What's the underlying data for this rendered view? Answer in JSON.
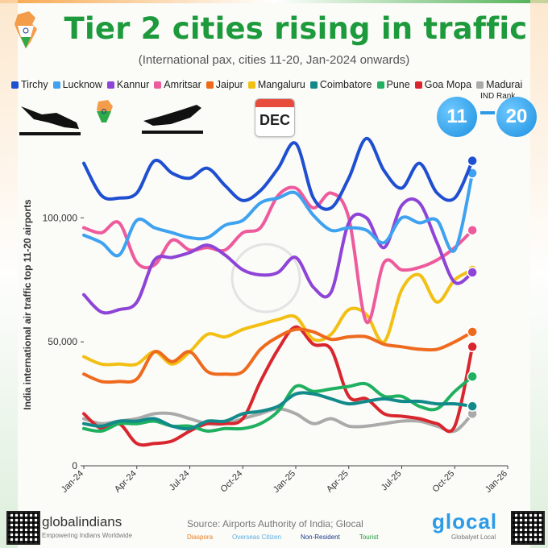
{
  "header": {
    "title": "Tier 2 cities rising in traffic",
    "subtitle": "(International pax, cities 11-20, Jan-2024 onwards)"
  },
  "badges": {
    "rank_label": "IND Rank",
    "rank_start": "11",
    "rank_end": "20",
    "calendar_text": "DEC"
  },
  "footer": {
    "source": "Source: Airports Authority of India; Glocal",
    "tags": [
      {
        "label": "Diaspora",
        "color": "#e67e22"
      },
      {
        "label": "Overseas Citizen",
        "color": "#5dade2"
      },
      {
        "label": "Non-Resident",
        "color": "#1a3a8a"
      },
      {
        "label": "Tourist",
        "color": "#1d9a3c"
      }
    ],
    "brand_left": "globalindians",
    "brand_left_sub": "Empowering Indians Worldwide",
    "brand_right": "glocal",
    "brand_right_sub": "Globalyet Local"
  },
  "chart_data": {
    "type": "line",
    "title": "Tier 2 cities rising in traffic",
    "subtitle": "(International pax, cities 11-20, Jan-2024 onwards)",
    "xlabel": "",
    "ylabel": "India international air traffic top 11-20 airports",
    "ylim": [
      0,
      130000
    ],
    "xlim": [
      "2024-01",
      "2026-01"
    ],
    "yticks": [
      0,
      50000,
      100000
    ],
    "ytick_labels": [
      "0",
      "50,000",
      "100,000"
    ],
    "xticks": [
      "2024-01",
      "2024-04",
      "2024-07",
      "2024-10",
      "2025-01",
      "2025-04",
      "2025-07",
      "2025-10",
      "2026-01"
    ],
    "xtick_labels": [
      "Jan-24",
      "Apr-24",
      "Jul-24",
      "Oct-24",
      "Jan-25",
      "Apr-25",
      "Jul-25",
      "Oct-25",
      "Jan-26"
    ],
    "grid": false,
    "legend": "top",
    "months": [
      "2024-01",
      "2024-02",
      "2024-03",
      "2024-04",
      "2024-05",
      "2024-06",
      "2024-07",
      "2024-08",
      "2024-09",
      "2024-10",
      "2024-11",
      "2024-12",
      "2025-01",
      "2025-02",
      "2025-03",
      "2025-04",
      "2025-05",
      "2025-06",
      "2025-07",
      "2025-08",
      "2025-09",
      "2025-10",
      "2025-11"
    ],
    "series": [
      {
        "name": "Tirchy",
        "color": "#1f4fd1",
        "values": [
          122000,
          109000,
          108000,
          110000,
          123000,
          118000,
          116000,
          120000,
          113000,
          107000,
          111000,
          120000,
          130000,
          108000,
          104000,
          116000,
          132000,
          119000,
          112000,
          122000,
          110000,
          108000,
          123000
        ]
      },
      {
        "name": "Lucknow",
        "color": "#3ea2f0",
        "values": [
          93000,
          90000,
          85000,
          99000,
          96000,
          94000,
          92000,
          92000,
          97000,
          99000,
          106000,
          108000,
          110000,
          101000,
          95000,
          96000,
          95000,
          90000,
          100000,
          98000,
          99000,
          87000,
          118000
        ]
      },
      {
        "name": "Kannur",
        "color": "#8e44d6",
        "values": [
          69000,
          62000,
          63000,
          66000,
          83000,
          84000,
          86000,
          89000,
          85000,
          79000,
          77000,
          78000,
          84000,
          72000,
          70000,
          98000,
          100000,
          88000,
          105000,
          106000,
          90000,
          74000,
          78000
        ]
      },
      {
        "name": "Amritsar",
        "color": "#ee5b9d",
        "values": [
          96000,
          94000,
          98000,
          82000,
          81000,
          91000,
          87000,
          88000,
          87000,
          94000,
          96000,
          109000,
          112000,
          104000,
          110000,
          100000,
          58000,
          82000,
          79000,
          80000,
          83000,
          88000,
          95000
        ]
      },
      {
        "name": "Jaipur",
        "color": "#ee6a1d",
        "values": [
          37000,
          34000,
          34000,
          35000,
          46000,
          42000,
          46000,
          38000,
          37000,
          38000,
          47000,
          52000,
          55000,
          54000,
          51000,
          52000,
          52000,
          49000,
          48000,
          47000,
          47000,
          50000,
          54000
        ]
      },
      {
        "name": "Mangaluru",
        "color": "#f2c014",
        "values": [
          44000,
          41000,
          41000,
          41000,
          46000,
          41000,
          46000,
          53000,
          52000,
          55000,
          57000,
          59000,
          60000,
          51000,
          53000,
          63000,
          61000,
          50000,
          71000,
          77000,
          66000,
          75000,
          79000
        ]
      },
      {
        "name": "Coimbatore",
        "color": "#138a8a",
        "values": [
          17000,
          16000,
          18000,
          18000,
          19000,
          16000,
          15000,
          18000,
          18000,
          21000,
          22000,
          24000,
          29000,
          29000,
          27000,
          25000,
          26000,
          27000,
          26000,
          26000,
          25000,
          25000,
          24000
        ]
      },
      {
        "name": "Pune",
        "color": "#1fb060",
        "values": [
          15000,
          14000,
          17000,
          17000,
          18000,
          16000,
          16000,
          14000,
          15000,
          15000,
          17000,
          22000,
          32000,
          30000,
          31000,
          32000,
          33000,
          28000,
          28000,
          24000,
          23000,
          30000,
          36000
        ]
      },
      {
        "name": "Goa Mopa",
        "color": "#d9262e",
        "values": [
          21000,
          15000,
          17000,
          9000,
          9000,
          10000,
          14000,
          17000,
          17000,
          19000,
          34000,
          47000,
          56000,
          49000,
          47000,
          28000,
          27000,
          21000,
          20000,
          19000,
          17000,
          16000,
          48000
        ]
      },
      {
        "name": "Madurai",
        "color": "#aaaaaa",
        "values": [
          19000,
          17000,
          18000,
          19000,
          21000,
          21000,
          19000,
          17000,
          17000,
          19000,
          21000,
          23000,
          21000,
          17000,
          19000,
          16000,
          16000,
          17000,
          18000,
          18000,
          16000,
          14000,
          21000
        ]
      }
    ]
  }
}
